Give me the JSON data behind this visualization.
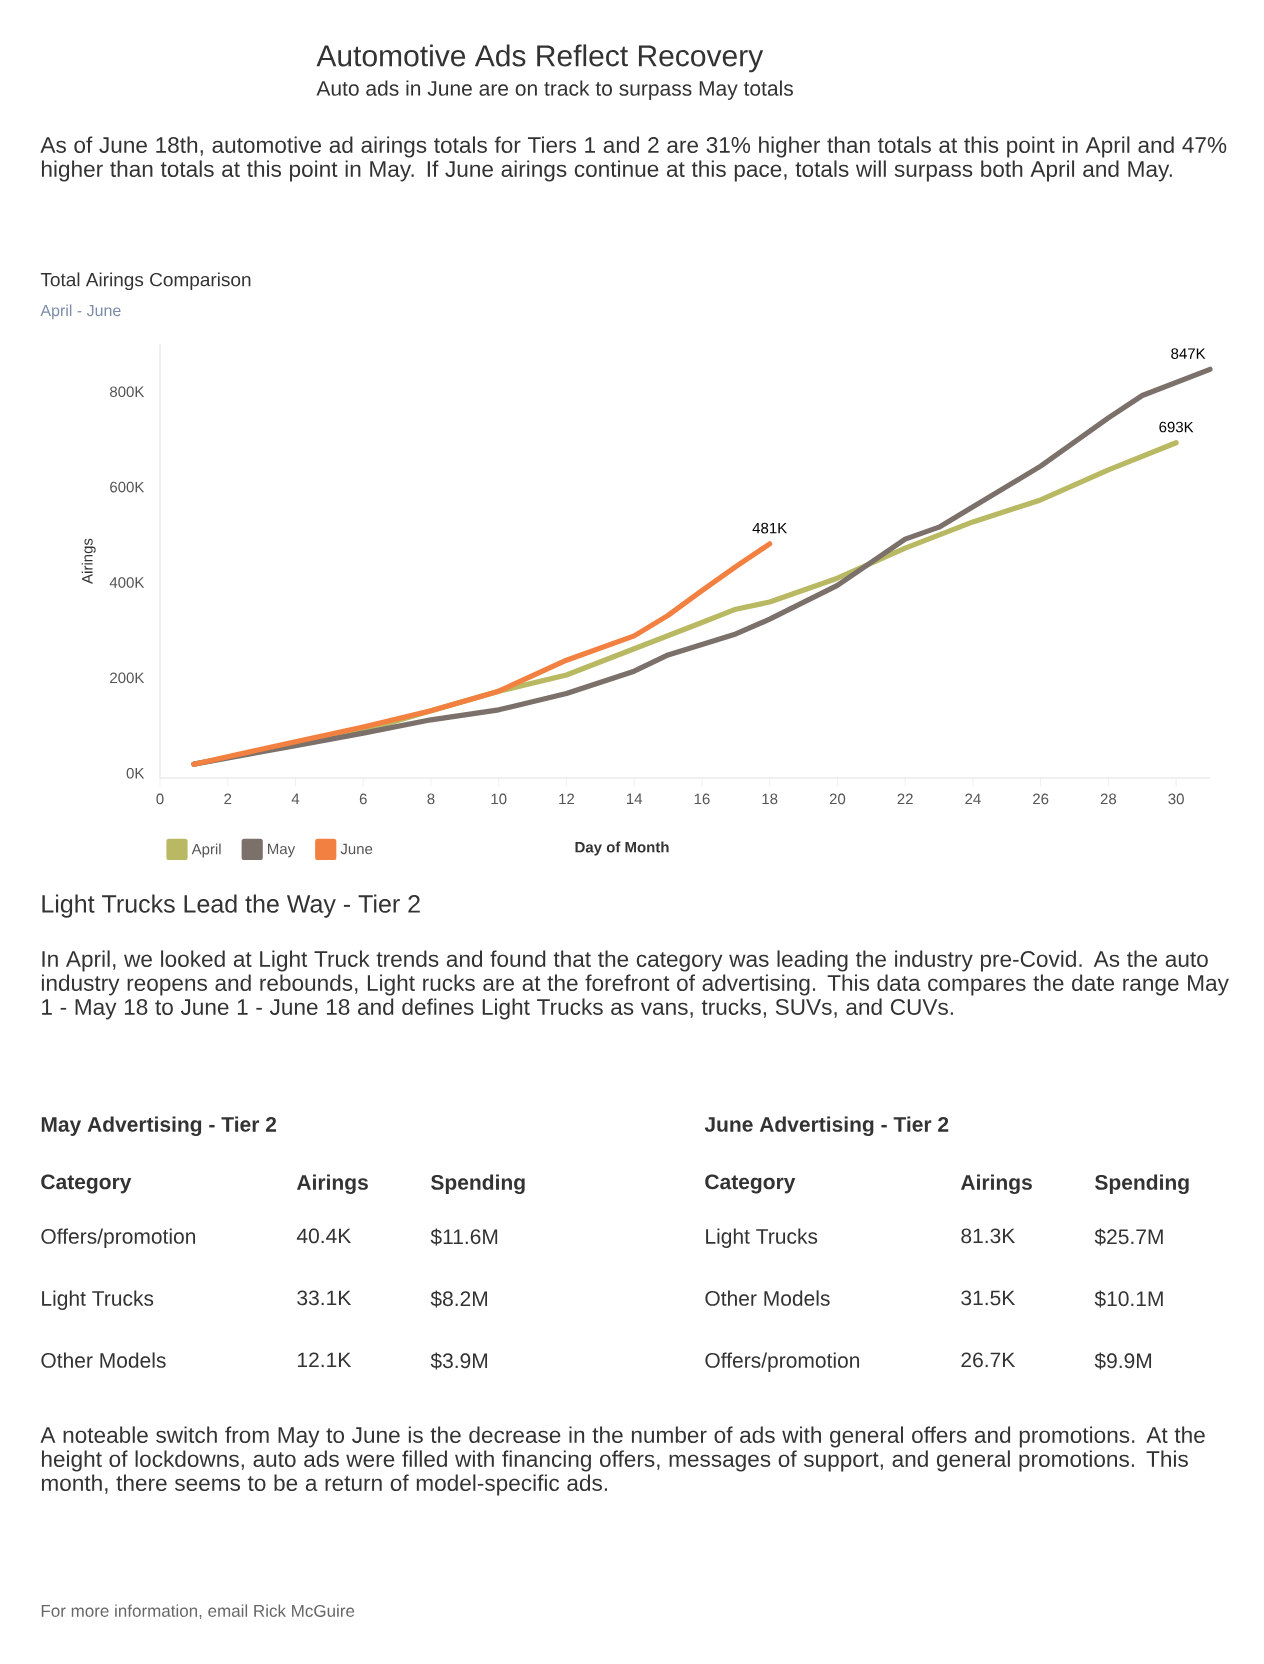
{
  "chart_data": [
    {
      "type": "other",
      "title": "Automotive Ads Reflect Recovery",
      "subtitle": "Auto ads in June are on track to surpass May totals",
      "annotations": [
        "As of June 18th, automotive ad airings totals for Tiers 1 and 2 are 31% higher than totals at this point in April and 47% higher than totals at this point in May. If June airings continue at this pace, totals will surpass both April and May."
      ]
    },
    {
      "type": "line",
      "title": "Total Airings Comparison",
      "subtitle": "April - June",
      "xlabel": "Day of Month",
      "ylabel": "Airings",
      "legend": "bottom left",
      "xlim": [
        0,
        31
      ],
      "xticks": [
        0,
        2,
        4,
        6,
        8,
        10,
        12,
        14,
        16,
        18,
        20,
        22,
        24,
        26,
        28,
        30
      ],
      "ylim": [
        -10000,
        900000
      ],
      "yticks": [
        {
          "value": 0,
          "label": "0K"
        },
        {
          "value": 200000,
          "label": "200K"
        },
        {
          "value": 400000,
          "label": "400K"
        },
        {
          "value": 600000,
          "label": "600K"
        },
        {
          "value": 800000,
          "label": "800K"
        }
      ],
      "series": [
        {
          "name": "April",
          "color": "#b9b964",
          "x": [
            1,
            4,
            6,
            8,
            10,
            12,
            14,
            16,
            17,
            18,
            20,
            22,
            24,
            26,
            28,
            30
          ],
          "values": [
            19000,
            61000,
            89000,
            131000,
            172000,
            206000,
            261000,
            316000,
            344000,
            359000,
            409000,
            472000,
            527000,
            573000,
            636000,
            693000
          ]
        },
        {
          "name": "May",
          "color": "#7b716a",
          "x": [
            1,
            4,
            6,
            8,
            10,
            12,
            14,
            15,
            17,
            18,
            20,
            22,
            23,
            26,
            28,
            29,
            31
          ],
          "values": [
            19000,
            58000,
            84000,
            112000,
            133000,
            167000,
            214000,
            248000,
            292000,
            323000,
            394000,
            491000,
            516000,
            644000,
            745000,
            792000,
            847000
          ]
        },
        {
          "name": "June",
          "color": "#f28040",
          "x": [
            1,
            4,
            6,
            8,
            10,
            12,
            14,
            15,
            16,
            17,
            18
          ],
          "values": [
            19000,
            66000,
            97000,
            131000,
            172000,
            237000,
            288000,
            331000,
            383000,
            433000,
            481000
          ]
        }
      ],
      "annotations": [
        {
          "text": "481K",
          "x": 18,
          "y": 481000
        },
        {
          "text": "847K",
          "x": 31,
          "y": 847000
        },
        {
          "text": "693K",
          "x": 30,
          "y": 693000
        }
      ]
    },
    {
      "type": "other",
      "title": "Light Trucks Lead the Way - Tier 2",
      "annotations": [
        "In April, we looked at Light Truck trends and found that the category was leading the industry pre-Covid. As the auto industry reopens and rebounds, Light rucks are at the forefront of advertising. This data compares the date range May 1 - May 18 to June 1 - June 18 and defines Light Trucks as vans, trucks, SUVs, and CUVs."
      ]
    },
    {
      "type": "other",
      "title": "May Advertising - Tier 2",
      "xlabel": "Category",
      "categories": [
        "Offers/promotion",
        "Light Trucks",
        "Other Models"
      ],
      "series": [
        {
          "name": "Airings",
          "values": [
            40400,
            33100,
            12100
          ],
          "value_labels": [
            "40.4K",
            "33.1K",
            "12.1K"
          ]
        },
        {
          "name": "Spending",
          "values": [
            11600000,
            8200000,
            3900000
          ],
          "value_labels": [
            "$11.6M",
            "$8.2M",
            "$3.9M"
          ]
        }
      ]
    },
    {
      "type": "other",
      "title": "June Advertising - Tier 2",
      "xlabel": "Category",
      "categories": [
        "Light Trucks",
        "Other Models",
        "Offers/promotion"
      ],
      "series": [
        {
          "name": "Airings",
          "values": [
            81300,
            31500,
            26700
          ],
          "value_labels": [
            "81.3K",
            "31.5K",
            "26.7K"
          ]
        },
        {
          "name": "Spending",
          "values": [
            25700000,
            10100000,
            9900000
          ],
          "value_labels": [
            "$25.7M",
            "$10.1M",
            "$9.9M"
          ]
        }
      ]
    },
    {
      "type": "other",
      "annotations": [
        "A noteable switch from May to June is the decrease in the number of ads with general offers and promotions. At the height of lockdowns, auto ads were filled with financing offers, messages of support, and general promotions. This month, there seems to be a return of model-specific ads.",
        "For more information, email Rick McGuire"
      ]
    }
  ]
}
